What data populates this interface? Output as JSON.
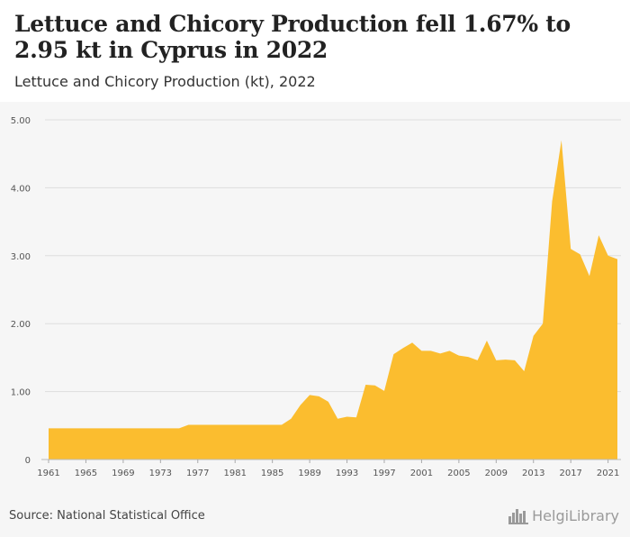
{
  "header": {
    "title": "Lettuce and Chicory Production fell 1.67% to 2.95 kt in Cyprus in 2022",
    "subtitle": "Lettuce and Chicory Production (kt), 2022"
  },
  "footer": {
    "source": "Source: National Statistical Office",
    "logo_text": "HelgiLibrary",
    "logo_icon": "city-skyline-icon"
  },
  "colors": {
    "fill": "#FBBD2F",
    "grid": "#dddddd",
    "background": "#f6f6f6"
  },
  "chart_data": {
    "type": "area",
    "title": "Lettuce and Chicory Production (kt), 2022",
    "xlabel": "",
    "ylabel": "",
    "ylim": [
      0,
      5
    ],
    "grid": true,
    "y_ticks": [
      "0",
      "1.00",
      "2.00",
      "3.00",
      "4.00",
      "5.00"
    ],
    "x_ticks": [
      1961,
      1965,
      1969,
      1973,
      1977,
      1981,
      1985,
      1989,
      1993,
      1997,
      2001,
      2005,
      2009,
      2013,
      2017,
      2021
    ],
    "x": [
      1961,
      1962,
      1963,
      1964,
      1965,
      1966,
      1967,
      1968,
      1969,
      1970,
      1971,
      1972,
      1973,
      1974,
      1975,
      1976,
      1977,
      1978,
      1979,
      1980,
      1981,
      1982,
      1983,
      1984,
      1985,
      1986,
      1987,
      1988,
      1989,
      1990,
      1991,
      1992,
      1993,
      1994,
      1995,
      1996,
      1997,
      1998,
      1999,
      2000,
      2001,
      2002,
      2003,
      2004,
      2005,
      2006,
      2007,
      2008,
      2009,
      2010,
      2011,
      2012,
      2013,
      2014,
      2015,
      2016,
      2017,
      2018,
      2019,
      2020,
      2021,
      2022
    ],
    "values": [
      0.46,
      0.46,
      0.46,
      0.46,
      0.46,
      0.46,
      0.46,
      0.46,
      0.46,
      0.46,
      0.46,
      0.46,
      0.46,
      0.46,
      0.46,
      0.51,
      0.51,
      0.51,
      0.51,
      0.51,
      0.51,
      0.51,
      0.51,
      0.51,
      0.51,
      0.51,
      0.6,
      0.8,
      0.95,
      0.93,
      0.85,
      0.6,
      0.63,
      0.62,
      1.1,
      1.09,
      1.01,
      1.55,
      1.64,
      1.72,
      1.6,
      1.6,
      1.56,
      1.6,
      1.53,
      1.51,
      1.46,
      1.75,
      1.46,
      1.47,
      1.46,
      1.3,
      1.82,
      2.0,
      3.8,
      4.7,
      3.1,
      3.02,
      2.7,
      3.3,
      3.0,
      2.95
    ]
  }
}
